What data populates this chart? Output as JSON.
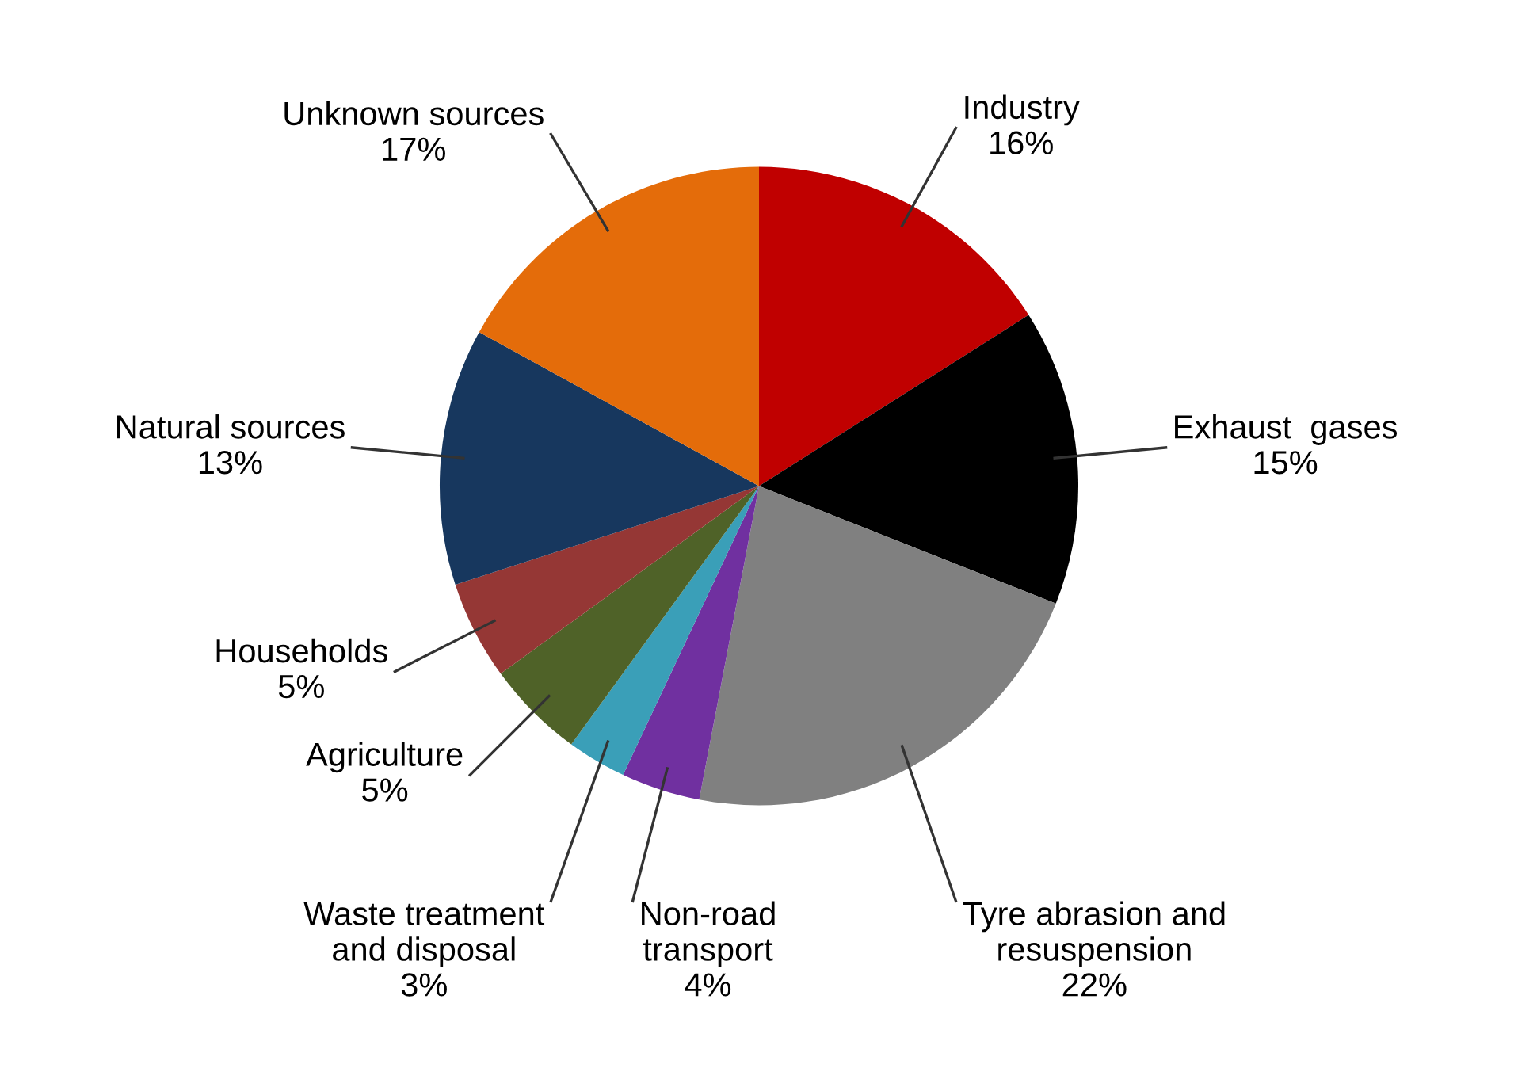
{
  "chart_data": {
    "type": "pie",
    "categories": [
      "Industry",
      "Exhaust  gases",
      "Tyre abrasion and\nresuspension",
      "Non-road\ntransport",
      "Waste treatment\nand disposal",
      "Agriculture",
      "Households",
      "Natural sources",
      "Unknown sources"
    ],
    "values": [
      16,
      15,
      22,
      4,
      3,
      5,
      5,
      13,
      17
    ],
    "value_labels": [
      "16%",
      "15%",
      "22%",
      "4%",
      "3%",
      "5%",
      "5%",
      "13%",
      "17%"
    ],
    "colors": [
      "#c00000",
      "#000000",
      "#808080",
      "#7030a0",
      "#3a9fb8",
      "#4f6228",
      "#953735",
      "#17375e",
      "#e46c0a"
    ],
    "legend": false
  }
}
